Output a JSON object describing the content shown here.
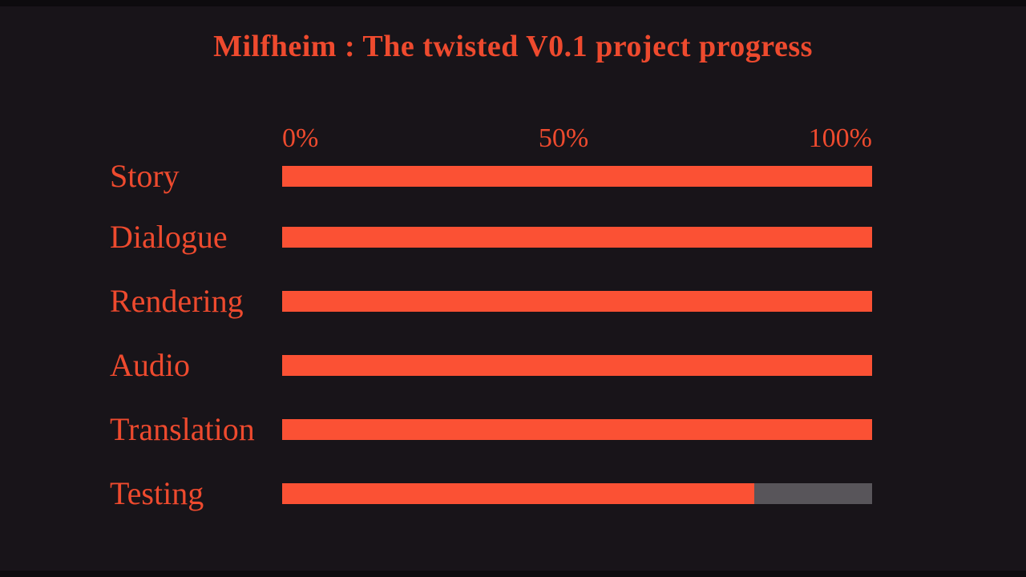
{
  "chart_data": {
    "type": "bar",
    "orientation": "horizontal",
    "title": "Milfheim : The twisted V0.1 project progress",
    "categories": [
      "Story",
      "Dialogue",
      "Rendering",
      "Audio",
      "Translation",
      "Testing"
    ],
    "values": [
      100,
      100,
      100,
      100,
      100,
      80
    ],
    "unit": "%",
    "xlabel": "",
    "ylabel": "",
    "xlim": [
      0,
      100
    ],
    "tick_labels": [
      "0%",
      "50%",
      "100%"
    ],
    "grid": false,
    "legend": false,
    "colors": {
      "background": "#181419",
      "letterbox": "#0d0b0e",
      "text": "#ee4a2e",
      "bar_fill": "#fb5134",
      "bar_track": "#58555a"
    }
  }
}
